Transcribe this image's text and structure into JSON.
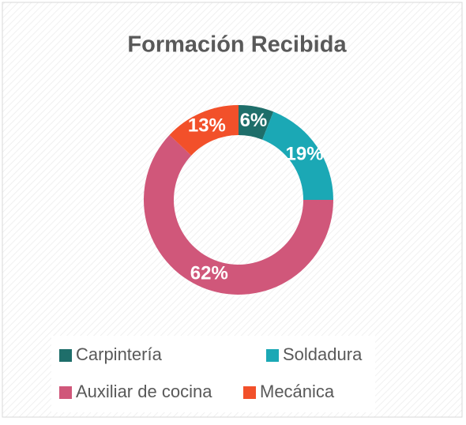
{
  "chart_data": {
    "type": "donut",
    "title": "Formación Recibida",
    "categories": [
      "Carpintería",
      "Soldadura",
      "Auxiliar de cocina",
      "Mecánica"
    ],
    "values": [
      6,
      19,
      62,
      13
    ],
    "value_labels": [
      "6%",
      "19%",
      "62%",
      "13%"
    ],
    "colors": [
      "#1e6e6a",
      "#1ba8b5",
      "#d0577a",
      "#f2502a"
    ],
    "legend": "bottom"
  }
}
